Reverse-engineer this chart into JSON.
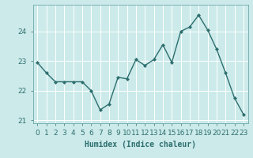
{
  "x": [
    0,
    1,
    2,
    3,
    4,
    5,
    6,
    7,
    8,
    9,
    10,
    11,
    12,
    13,
    14,
    15,
    16,
    17,
    18,
    19,
    20,
    21,
    22,
    23
  ],
  "y": [
    22.95,
    22.6,
    22.3,
    22.3,
    22.3,
    22.3,
    22.0,
    21.35,
    21.55,
    22.45,
    22.4,
    23.05,
    22.85,
    23.05,
    23.55,
    22.95,
    24.0,
    24.15,
    24.55,
    24.05,
    23.4,
    22.6,
    21.75,
    21.2
  ],
  "line_color": "#2d6e6e",
  "marker": "D",
  "marker_size": 2.0,
  "bg_color": "#cceaea",
  "grid_color": "#ffffff",
  "xlabel": "Humidex (Indice chaleur)",
  "ylim": [
    20.9,
    24.9
  ],
  "xlim": [
    -0.5,
    23.5
  ],
  "yticks": [
    21,
    22,
    23,
    24
  ],
  "xticks": [
    0,
    1,
    2,
    3,
    4,
    5,
    6,
    7,
    8,
    9,
    10,
    11,
    12,
    13,
    14,
    15,
    16,
    17,
    18,
    19,
    20,
    21,
    22,
    23
  ],
  "xlabel_fontsize": 7.0,
  "tick_fontsize": 6.5,
  "line_width": 1.0,
  "tick_color": "#2d6e6e",
  "spine_color": "#5a9a9a"
}
